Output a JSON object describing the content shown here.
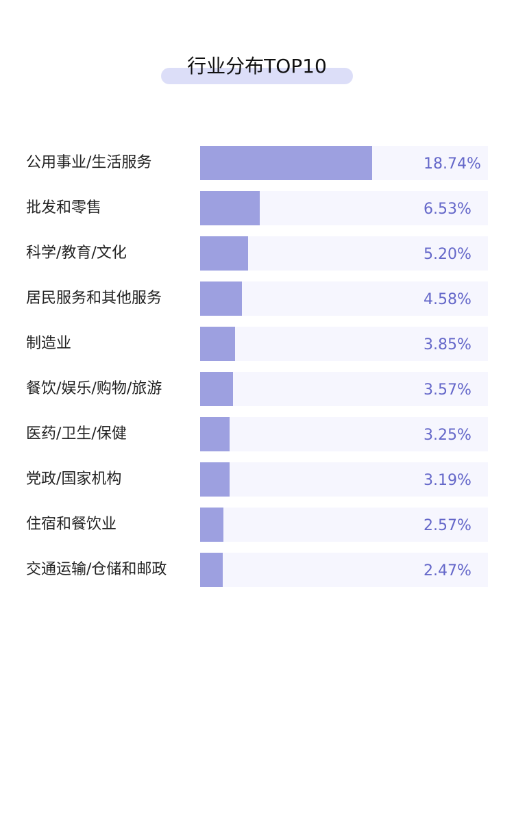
{
  "header": {
    "title": "行业分布TOP10"
  },
  "colors": {
    "bar_fill": "#9da0e0",
    "bar_track": "#f6f6fe",
    "value_text": "#6467c9",
    "title_highlight": "#dcdef8"
  },
  "chart_data": {
    "type": "bar",
    "orientation": "horizontal",
    "title": "行业分布TOP10",
    "unit": "%",
    "grid": false,
    "categories": [
      "公用事业/生活服务",
      "批发和零售",
      "科学/教育/文化",
      "居民服务和其他服务",
      "制造业",
      "餐饮/娱乐/购物/旅游",
      "医药/卫生/保健",
      "党政/国家机构",
      "住宿和餐饮业",
      "交通运输/仓储和邮政"
    ],
    "values": [
      18.74,
      6.53,
      5.2,
      4.58,
      3.85,
      3.57,
      3.25,
      3.19,
      2.57,
      2.47
    ],
    "labels": [
      "18.74%",
      "6.53%",
      "5.20%",
      "4.58%",
      "3.85%",
      "3.57%",
      "3.25%",
      "3.19%",
      "2.57%",
      "2.47%"
    ]
  }
}
